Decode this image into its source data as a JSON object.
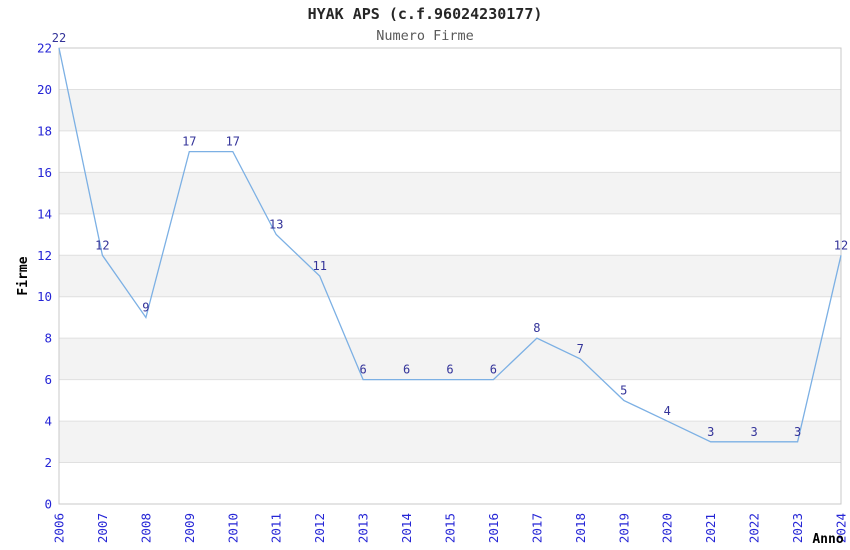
{
  "chart_data": {
    "type": "line",
    "title": "HYAK APS (c.f.96024230177)",
    "subtitle": "Numero Firme",
    "xlabel": "Anno",
    "ylabel": "Firme",
    "categories": [
      "2006",
      "2007",
      "2008",
      "2009",
      "2010",
      "2011",
      "2012",
      "2013",
      "2014",
      "2015",
      "2016",
      "2017",
      "2018",
      "2019",
      "2020",
      "2021",
      "2022",
      "2023",
      "2024"
    ],
    "series": [
      {
        "name": "Numero Firme",
        "values": [
          22,
          12,
          9,
          17,
          17,
          13,
          11,
          6,
          6,
          6,
          6,
          8,
          7,
          5,
          4,
          3,
          3,
          3,
          12
        ]
      }
    ],
    "point_labels_shown": true,
    "ylim": [
      0,
      22
    ],
    "ytick_step": 2,
    "yticks": [
      0,
      2,
      4,
      6,
      8,
      10,
      12,
      14,
      16,
      18,
      20,
      22
    ],
    "grid": "horizontal-alternating-bands",
    "legend": "none",
    "colors": {
      "line": "#7cb0e4",
      "tick_label": "#2626d6",
      "point_label": "#333399",
      "band_fill": "#f3f3f3",
      "grid_line": "#e0e0e0",
      "plot_border": "#c9c9c9",
      "title": "#262626",
      "subtitle": "#595959",
      "axis_title": "#000000",
      "background": "#ffffff"
    }
  }
}
